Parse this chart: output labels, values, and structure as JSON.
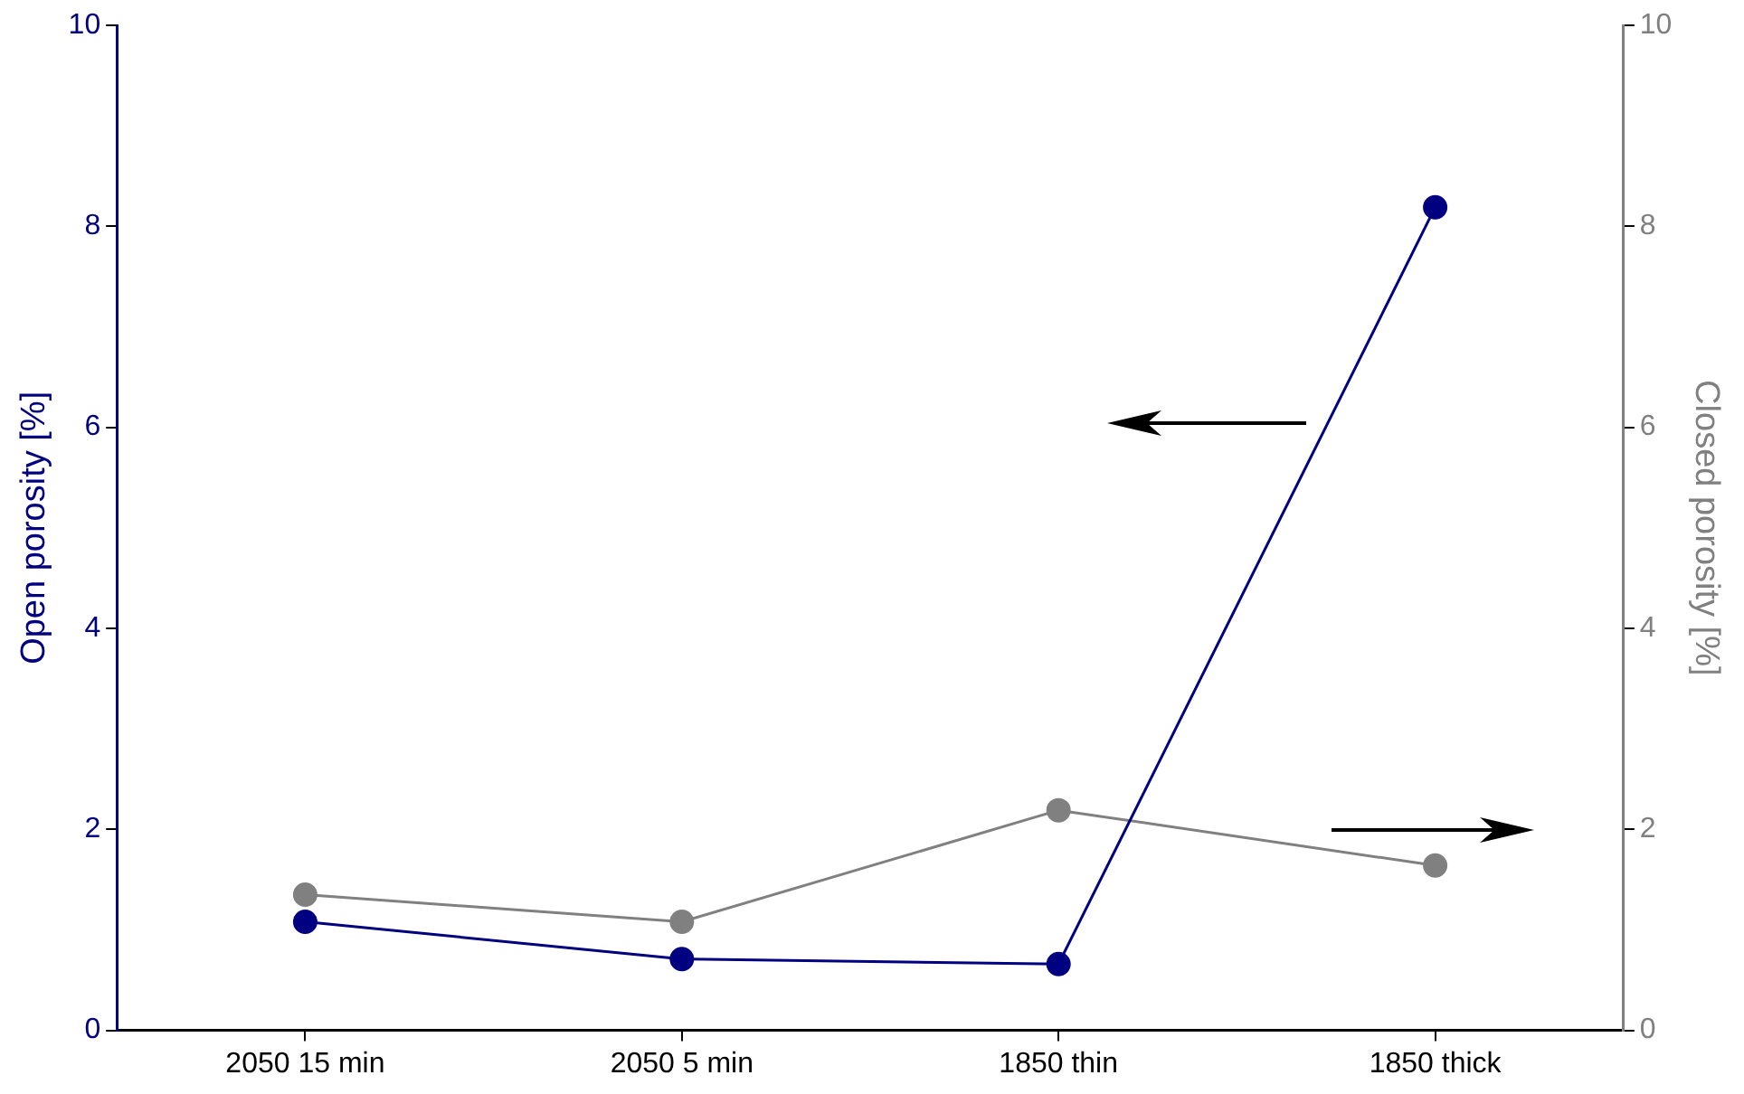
{
  "chart_data": {
    "type": "line",
    "categories": [
      "2050 15 min",
      "2050 5 min",
      "1850 thin",
      "1850 thick"
    ],
    "series": [
      {
        "name": null,
        "color": "#000080",
        "values": [
          1.08,
          0.71,
          0.66,
          8.19
        ]
      },
      {
        "name": null,
        "color": "#808080",
        "values": [
          1.35,
          1.08,
          2.19,
          1.64
        ],
        "axis": "y2"
      }
    ],
    "ylabel": "Open porosity [%]",
    "y2label": "Closed porosity [%]",
    "ylim": [
      0,
      10
    ],
    "yticks": [
      0,
      2,
      4,
      6,
      8,
      10
    ],
    "y2lim": [
      0,
      10
    ],
    "y2ticks": [
      0,
      2,
      4,
      6,
      8,
      10
    ],
    "marker": "circle"
  }
}
